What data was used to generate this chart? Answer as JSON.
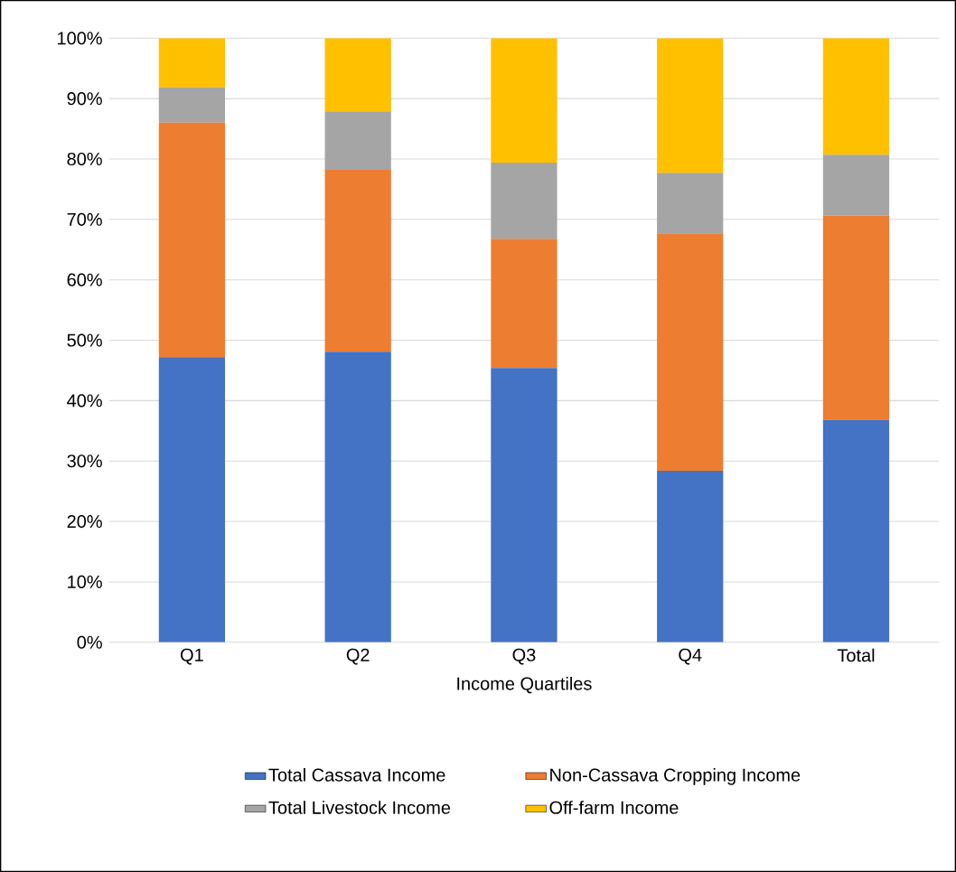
{
  "chart_data": {
    "type": "bar",
    "stacked": true,
    "xlabel": "Income Quartiles",
    "categories": [
      "Q1",
      "Q2",
      "Q3",
      "Q4",
      "Total"
    ],
    "series": [
      {
        "name": "Total Cassava Income",
        "color": "#4472c4",
        "values": [
          47.2,
          48.1,
          45.4,
          28.4,
          36.8
        ]
      },
      {
        "name": "Non-Cassava Cropping Income",
        "color": "#ed7d31",
        "values": [
          38.8,
          30.1,
          21.4,
          39.3,
          33.8
        ]
      },
      {
        "name": "Total Livestock Income",
        "color": "#a5a5a5",
        "values": [
          5.9,
          9.7,
          12.6,
          10.0,
          10.1
        ]
      },
      {
        "name": "Off-farm Income",
        "color": "#ffc000",
        "values": [
          8.1,
          12.1,
          20.6,
          22.3,
          19.3
        ]
      }
    ],
    "ylim": [
      0,
      100
    ],
    "yticks": [
      {
        "value": 0,
        "label": "0%"
      },
      {
        "value": 10,
        "label": "10%"
      },
      {
        "value": 20,
        "label": "20%"
      },
      {
        "value": 30,
        "label": "30%"
      },
      {
        "value": 40,
        "label": "40%"
      },
      {
        "value": 50,
        "label": "50%"
      },
      {
        "value": 60,
        "label": "60%"
      },
      {
        "value": 70,
        "label": "70%"
      },
      {
        "value": 80,
        "label": "80%"
      },
      {
        "value": 90,
        "label": "90%"
      },
      {
        "value": 100,
        "label": "100%"
      }
    ],
    "grid": "y",
    "legend": "bottom"
  }
}
